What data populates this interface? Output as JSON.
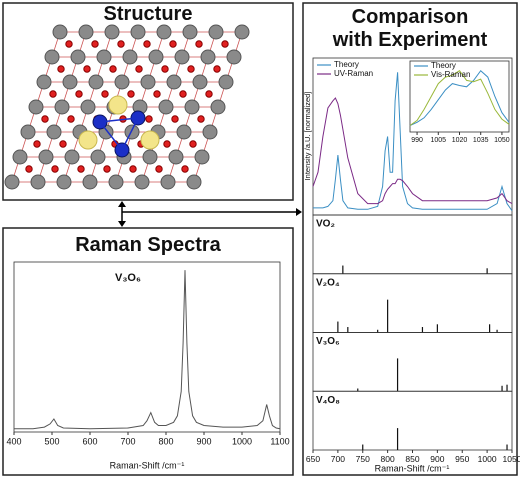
{
  "structure": {
    "title": "Structure"
  },
  "chart_data": [
    {
      "type": "line",
      "title": "Raman Spectra",
      "annotation": "V₃O₆",
      "xlabel": "Raman-Shift /cm⁻¹",
      "xlim": [
        400,
        1100
      ],
      "xticks": [
        400,
        500,
        600,
        700,
        800,
        900,
        1000,
        1100
      ],
      "ylim": [
        0,
        105
      ],
      "color": "#555555",
      "x": [
        400,
        450,
        480,
        495,
        505,
        515,
        530,
        600,
        700,
        740,
        750,
        760,
        770,
        780,
        800,
        820,
        830,
        840,
        845,
        850,
        855,
        860,
        870,
        880,
        900,
        950,
        1000,
        1040,
        1055,
        1065,
        1072,
        1080,
        1090,
        1100
      ],
      "values": [
        2,
        2,
        3,
        5,
        8,
        4,
        2.5,
        2,
        2.5,
        4,
        7,
        12,
        6,
        4,
        4,
        6,
        10,
        25,
        55,
        100,
        55,
        25,
        10,
        6,
        4,
        3,
        3,
        4,
        7,
        17,
        10,
        4,
        2.5,
        2
      ]
    },
    {
      "type": "line",
      "title": "Comparison with Experiment",
      "ylabel": "Intensity /a.U. [normalized]",
      "xlabel": "Raman-Shift /cm⁻¹",
      "xlim": [
        650,
        1050
      ],
      "xticks": [
        650,
        700,
        750,
        800,
        850,
        900,
        950,
        1000,
        1050
      ],
      "ylim": [
        0,
        1.1
      ],
      "legend": "upper left",
      "x": [
        650,
        660,
        670,
        680,
        690,
        695,
        700,
        705,
        710,
        720,
        740,
        760,
        780,
        790,
        795,
        800,
        805,
        810,
        815,
        820,
        825,
        830,
        840,
        850,
        870,
        900,
        950,
        1000,
        1020,
        1030,
        1040,
        1050
      ],
      "series": [
        {
          "name": "Theory",
          "color": "#3b8fc4",
          "values": [
            0.05,
            0.05,
            0.05,
            0.06,
            0.1,
            0.25,
            0.42,
            0.25,
            0.1,
            0.05,
            0.04,
            0.04,
            0.06,
            0.2,
            0.45,
            0.55,
            0.3,
            0.3,
            0.8,
            1.0,
            0.6,
            0.2,
            0.08,
            0.05,
            0.04,
            0.04,
            0.04,
            0.04,
            0.08,
            0.2,
            0.08,
            0.03
          ]
        },
        {
          "name": "UV-Raman",
          "color": "#7b2a86",
          "values": [
            0.2,
            0.3,
            0.55,
            0.75,
            0.8,
            0.82,
            0.78,
            0.7,
            0.6,
            0.4,
            0.15,
            0.08,
            0.08,
            0.1,
            0.15,
            0.18,
            0.2,
            0.22,
            0.22,
            0.25,
            0.25,
            0.24,
            0.2,
            0.15,
            0.1,
            0.1,
            0.1,
            0.1,
            0.12,
            0.15,
            0.1,
            0.08
          ]
        }
      ]
    },
    {
      "type": "line",
      "xlim": [
        985,
        1055
      ],
      "xticks": [
        990,
        1005,
        1020,
        1035,
        1050
      ],
      "ylim": [
        0,
        1.1
      ],
      "legend": "upper left",
      "x": [
        985,
        990,
        995,
        1000,
        1005,
        1010,
        1015,
        1020,
        1025,
        1030,
        1035,
        1040,
        1045,
        1050,
        1055
      ],
      "series": [
        {
          "name": "Theory",
          "color": "#3b8fc4",
          "values": [
            0.1,
            0.15,
            0.22,
            0.35,
            0.5,
            0.65,
            0.75,
            0.72,
            0.7,
            0.8,
            0.95,
            0.85,
            0.55,
            0.3,
            0.15
          ]
        },
        {
          "name": "Vis-Raman",
          "color": "#9ab83a",
          "values": [
            0.1,
            0.18,
            0.35,
            0.55,
            0.75,
            0.85,
            0.88,
            0.95,
            0.8,
            0.78,
            0.82,
            0.6,
            0.35,
            0.2,
            0.12
          ]
        }
      ]
    },
    {
      "type": "stick",
      "xlim": [
        650,
        1050
      ],
      "ylim": [
        0,
        1
      ],
      "color": "#111111",
      "panels": [
        {
          "label": "VO₂",
          "x": [
            710,
            1000
          ],
          "values": [
            0.15,
            0.1
          ]
        },
        {
          "label": "V₂O₄",
          "x": [
            700,
            720,
            780,
            800,
            870,
            900,
            1005,
            1020
          ],
          "values": [
            0.2,
            0.1,
            0.05,
            0.6,
            0.1,
            0.15,
            0.15,
            0.05
          ]
        },
        {
          "label": "V₃O₆",
          "x": [
            740,
            820,
            1030,
            1040
          ],
          "values": [
            0.05,
            0.6,
            0.1,
            0.12
          ]
        },
        {
          "label": "V₄O₈",
          "x": [
            750,
            820,
            1040
          ],
          "values": [
            0.1,
            0.4,
            0.1
          ]
        }
      ]
    }
  ]
}
